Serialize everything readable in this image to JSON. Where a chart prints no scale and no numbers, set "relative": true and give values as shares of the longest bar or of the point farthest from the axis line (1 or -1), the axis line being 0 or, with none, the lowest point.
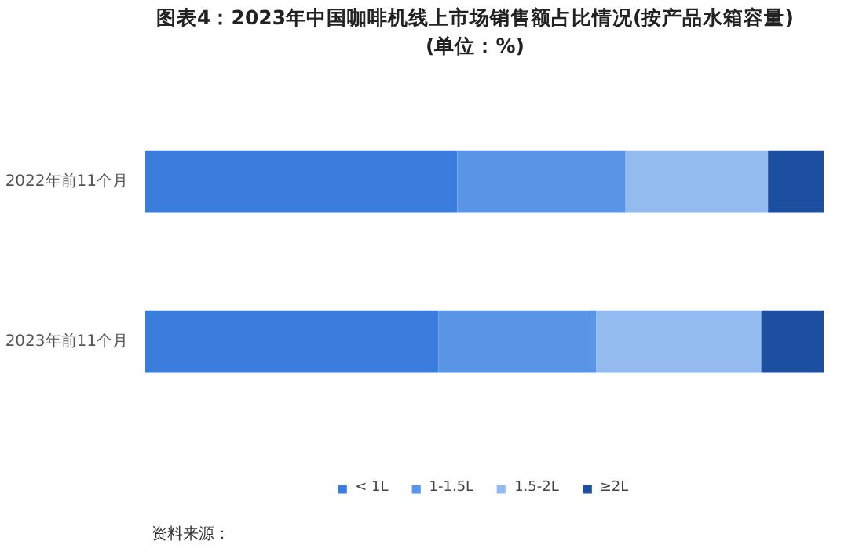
{
  "chart_data": {
    "type": "bar",
    "orientation": "horizontal",
    "stacked": true,
    "relative": true,
    "title": "图表4：2023年中国咖啡机线上市场销售额占比情况(按产品水箱容量)\n(单位：%)",
    "categories": [
      "2022年前11个月",
      "2023年前11个月"
    ],
    "series": [
      {
        "name": "< 1L",
        "color": "#3b7ddd",
        "values": [
          0.46,
          0.432
        ]
      },
      {
        "name": "1-1.5L",
        "color": "#5a94e6",
        "values": [
          0.248,
          0.233
        ]
      },
      {
        "name": "1.5-2L",
        "color": "#93bbf0",
        "values": [
          0.21,
          0.243
        ]
      },
      {
        "name": "≥2L",
        "color": "#1c4fa0",
        "values": [
          0.082,
          0.092
        ]
      }
    ],
    "legend": "bottom",
    "grid": false,
    "annotations": [
      "资料来源："
    ]
  }
}
